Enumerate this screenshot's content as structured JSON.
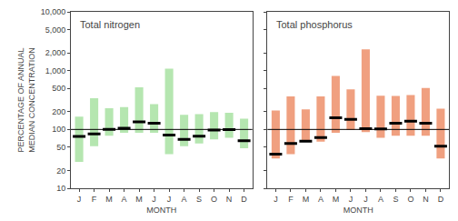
{
  "chart_data": [
    {
      "type": "bar",
      "title": "Total nitrogen",
      "categories": [
        "J",
        "F",
        "M",
        "A",
        "M",
        "J",
        "J",
        "A",
        "S",
        "O",
        "N",
        "D"
      ],
      "low": [
        28,
        52,
        78,
        88,
        88,
        88,
        38,
        52,
        58,
        68,
        72,
        48
      ],
      "high": [
        165,
        340,
        230,
        240,
        520,
        270,
        1080,
        178,
        182,
        198,
        192,
        152
      ],
      "median": [
        76,
        84,
        100,
        105,
        135,
        128,
        80,
        68,
        77,
        98,
        99,
        64
      ],
      "reference_line": 100,
      "color": "#b5e6b0",
      "log": "y",
      "ylim": [
        10,
        10000
      ],
      "yticks": [
        10,
        20,
        50,
        100,
        200,
        500,
        {
          "value": 1000,
          "label": "1,000"
        },
        {
          "value": 2000,
          "label": "2,000"
        },
        {
          "value": 5000,
          "label": "5,000"
        },
        {
          "value": 10000,
          "label": "10,000"
        }
      ],
      "ylabel": "PERCENTAGE OF ANNUAL\nMEDIAN CONCENTRATION",
      "xlabel": "MONTH",
      "grid": false
    },
    {
      "type": "bar",
      "title": "Total phosphorus",
      "categories": [
        "J",
        "F",
        "M",
        "A",
        "M",
        "J",
        "J",
        "A",
        "S",
        "O",
        "N",
        "D"
      ],
      "low": [
        32,
        38,
        62,
        62,
        88,
        98,
        90,
        72,
        78,
        78,
        78,
        32
      ],
      "high": [
        210,
        365,
        220,
        365,
        810,
        480,
        2300,
        375,
        370,
        385,
        505,
        225
      ],
      "median": [
        38,
        58,
        63,
        73,
        158,
        148,
        103,
        102,
        128,
        138,
        128,
        52
      ],
      "reference_line": 100,
      "color": "#f0a080",
      "log": "y",
      "ylim": [
        10,
        10000
      ],
      "yticks": [
        10,
        20,
        50,
        100,
        200,
        500,
        {
          "value": 1000,
          "label": "1,000"
        },
        {
          "value": 2000,
          "label": "2,000"
        },
        {
          "value": 5000,
          "label": "5,000"
        },
        {
          "value": 10000,
          "label": "10,000"
        }
      ],
      "xlabel": "MONTH",
      "tick_labels": "x",
      "grid": false
    }
  ]
}
